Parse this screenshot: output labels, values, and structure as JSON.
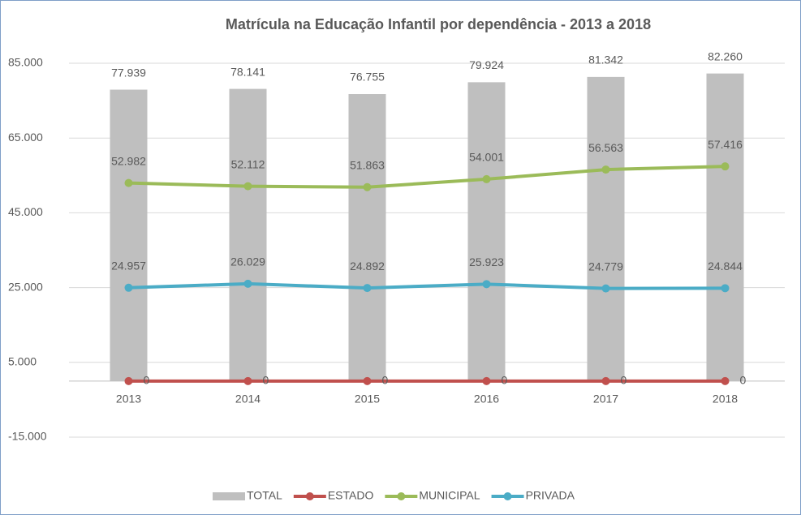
{
  "chart_data": {
    "type": "combo",
    "title": "Matrícula na Educação Infantil por dependência -  2013 a  2018",
    "categories": [
      "2013",
      "2014",
      "2015",
      "2016",
      "2017",
      "2018"
    ],
    "series": [
      {
        "name": "TOTAL",
        "type": "bar",
        "color": "#bfbfbf",
        "values": [
          77939,
          78141,
          76755,
          79924,
          81342,
          82260
        ],
        "value_labels": [
          "77.939",
          "78.141",
          "76.755",
          "79.924",
          "81.342",
          "82.260"
        ]
      },
      {
        "name": "ESTADO",
        "type": "line",
        "color": "#c0504d",
        "values": [
          0,
          0,
          0,
          0,
          0,
          0
        ]
      },
      {
        "name": "MUNICIPAL",
        "type": "line",
        "color": "#9bbb59",
        "values": [
          52982,
          52112,
          51863,
          54001,
          56563,
          57416
        ],
        "value_labels": [
          "52.982",
          "52.112",
          "51.863",
          "54.001",
          "56.563",
          "57.416"
        ]
      },
      {
        "name": "PRIVADA",
        "type": "line",
        "color": "#4bacc6",
        "values": [
          24957,
          26029,
          24892,
          25923,
          24779,
          24844
        ],
        "value_labels": [
          "24.957",
          "26.029",
          "24.892",
          "25.923",
          "24.779",
          "24.844"
        ]
      }
    ],
    "ylim": [
      -15000,
      85000
    ],
    "yticks": [
      {
        "value": 85000,
        "label": "85.000"
      },
      {
        "value": 65000,
        "label": "65.000"
      },
      {
        "value": 45000,
        "label": "45.000"
      },
      {
        "value": 25000,
        "label": "25.000"
      },
      {
        "value": 5000,
        "label": "5.000"
      },
      {
        "value": -15000,
        "label": "-15.000"
      }
    ],
    "grid": true,
    "legend": "bottom"
  }
}
